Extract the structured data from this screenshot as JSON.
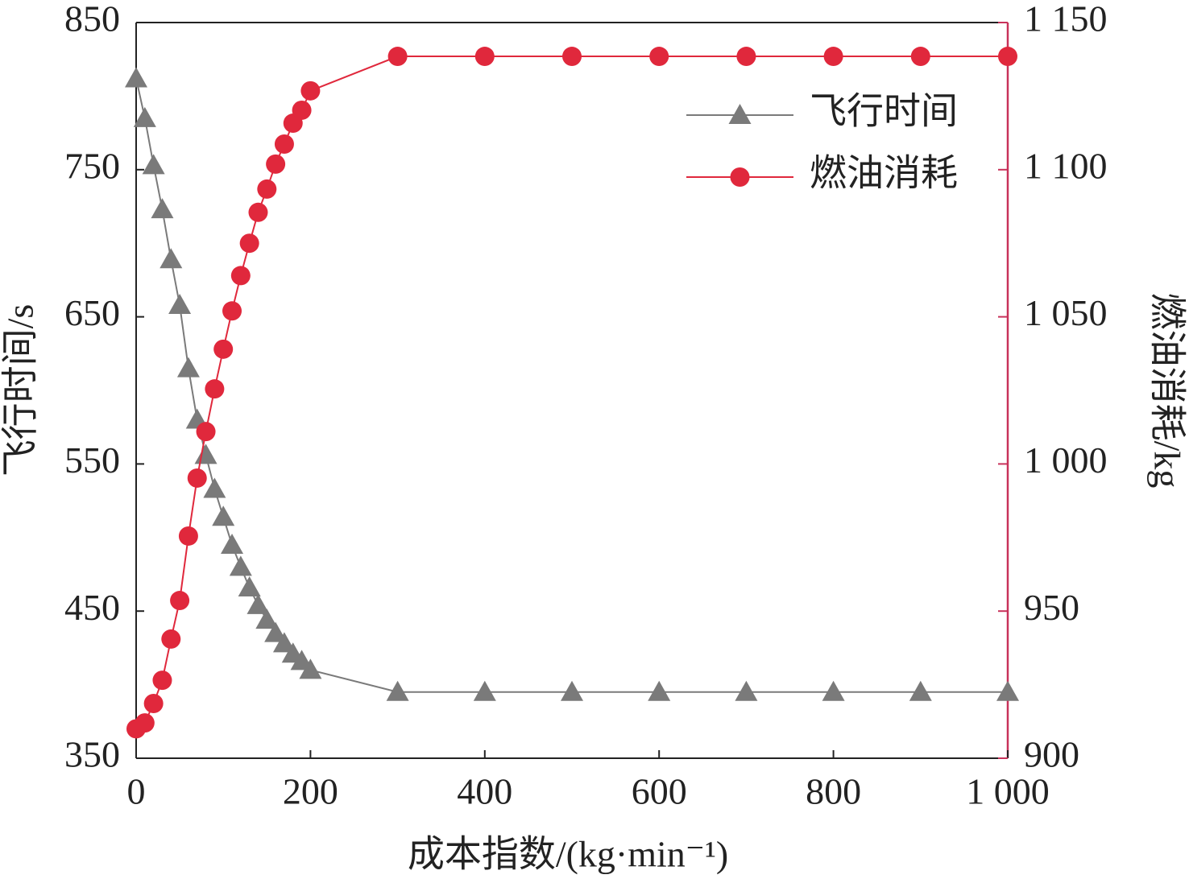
{
  "chart_data": {
    "type": "line",
    "x_label": "成本指数/(kg·min⁻¹)",
    "y_label": "飞行时间/s",
    "y2_label": "燃油消耗/kg",
    "x": [
      0,
      10,
      20,
      30,
      40,
      50,
      60,
      70,
      80,
      90,
      100,
      110,
      120,
      130,
      140,
      150,
      160,
      170,
      180,
      190,
      200,
      300,
      400,
      500,
      600,
      700,
      800,
      900,
      1000
    ],
    "series": [
      {
        "name": "飞行时间",
        "color": "#7a7a7a",
        "marker": "triangle",
        "values": [
          812,
          785,
          753,
          723,
          689,
          658,
          615,
          580,
          556,
          533,
          514,
          495,
          480,
          466,
          454,
          444,
          435,
          428,
          421,
          416,
          410,
          395,
          395,
          395,
          395,
          395,
          395,
          395,
          395
        ]
      },
      {
        "name": "燃油消耗",
        "color": "#e0283c",
        "marker": "circle",
        "axis": "y2",
        "values": [
          910,
          912,
          918.6,
          926.5,
          940.5,
          953.6,
          975.5,
          995.2,
          1011,
          1025.5,
          1039,
          1052,
          1064,
          1075,
          1085.5,
          1093.4,
          1101.9,
          1108.7,
          1115.8,
          1120.2,
          1126.8,
          1138.5,
          1138.5,
          1138.5,
          1138.5,
          1138.5,
          1138.5,
          1138.5,
          1138.5
        ]
      }
    ],
    "xlim": [
      0,
      1000
    ],
    "xticks": [
      0,
      200,
      400,
      600,
      800,
      {
        "value": 1000,
        "label": "1 000"
      }
    ],
    "ylim": [
      350,
      850
    ],
    "yticks": [
      350,
      450,
      550,
      650,
      750,
      850
    ],
    "y2lim": [
      900,
      1150
    ],
    "y2ticks": [
      900,
      950,
      {
        "value": 1000,
        "label": "1 000"
      },
      {
        "value": 1050,
        "label": "1 050"
      },
      {
        "value": 1100,
        "label": "1 100"
      },
      {
        "value": 1150,
        "label": "1 150"
      }
    ],
    "y2_axis_color": "#c8325a",
    "legend": "upper right"
  }
}
